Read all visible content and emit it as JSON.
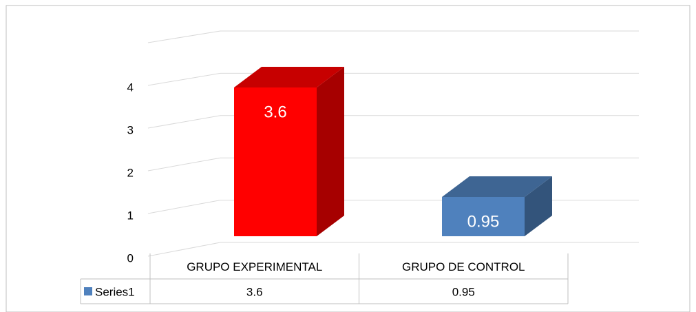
{
  "chart_data": {
    "type": "bar3d",
    "categories": [
      "GRUPO EXPERIMENTAL",
      "GRUPO DE CONTROL"
    ],
    "series": [
      {
        "name": "Series1",
        "color": "#4f81bd",
        "values": [
          3.6,
          0.95
        ]
      }
    ],
    "colors": [
      "#ff0000",
      "#4f81bd"
    ],
    "ylim": [
      0,
      5
    ],
    "yticks": [
      0,
      1,
      2,
      3,
      4
    ],
    "grid": true,
    "data_table": true
  }
}
